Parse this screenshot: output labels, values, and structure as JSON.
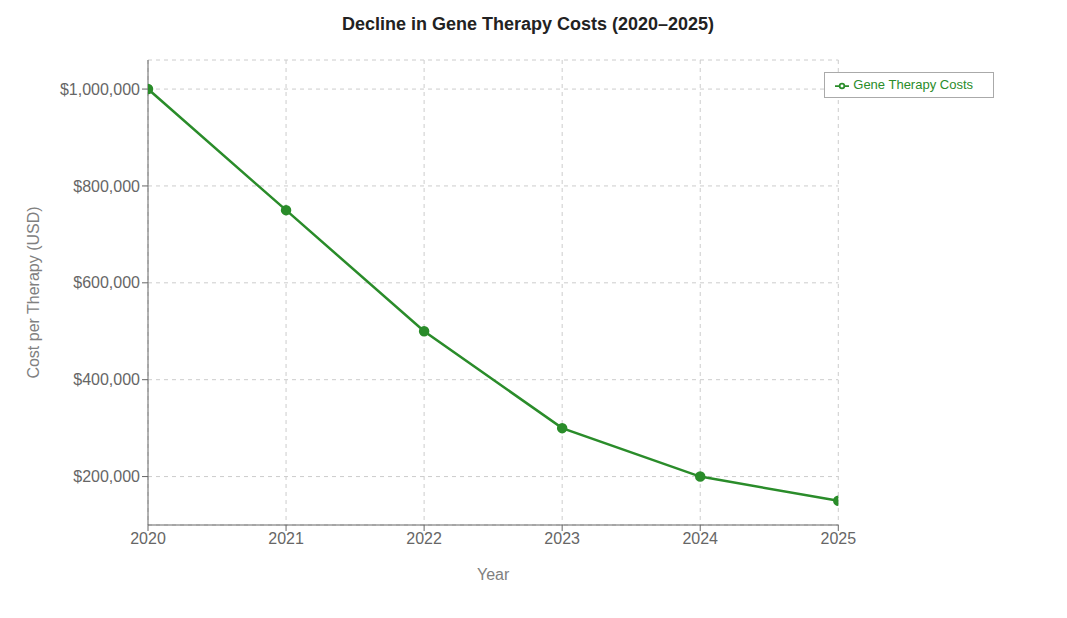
{
  "chart_data": {
    "type": "line",
    "title": "Decline in Gene Therapy Costs (2020–2025)",
    "x_label": "Year",
    "y_label": "Cost per Therapy (USD)",
    "x": [
      2020,
      2021,
      2022,
      2023,
      2024,
      2025
    ],
    "series": [
      {
        "name": "Gene Therapy Costs",
        "color": "#2a8c2a",
        "marker": "circle",
        "values": [
          1000000,
          750000,
          500000,
          300000,
          200000,
          150000
        ]
      }
    ],
    "xlim": [
      2020,
      2025
    ],
    "xticks": [
      2020,
      2021,
      2022,
      2023,
      2024,
      2025
    ],
    "ylim": [
      100000,
      1060000
    ],
    "yticks": [
      {
        "value": 200000,
        "label": "$200,000"
      },
      {
        "value": 400000,
        "label": "$400,000"
      },
      {
        "value": 600000,
        "label": "$600,000"
      },
      {
        "value": 800000,
        "label": "$800,000"
      },
      {
        "value": 1000000,
        "label": "$1,000,000"
      }
    ],
    "grid": true,
    "legend": "upper right"
  }
}
